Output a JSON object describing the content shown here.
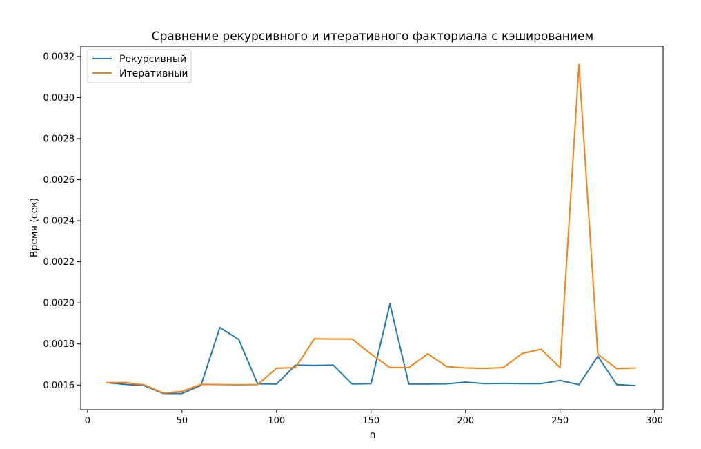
{
  "chart_data": {
    "type": "line",
    "title": "Сравнение рекурсивного и итеративного факториала с кэшированием",
    "xlabel": "n",
    "ylabel": "Время (сек)",
    "xlim": [
      -3.6,
      304.5
    ],
    "ylim": [
      0.00148,
      0.00325
    ],
    "xticks": [
      0,
      50,
      100,
      150,
      200,
      250,
      300
    ],
    "yticks": [
      0.0016,
      0.0018,
      0.002,
      0.0022,
      0.0024,
      0.0026,
      0.0028,
      0.003,
      0.0032
    ],
    "legend_position": "upper-left",
    "grid": false,
    "x": [
      10,
      20,
      30,
      40,
      50,
      60,
      70,
      80,
      90,
      100,
      110,
      120,
      130,
      140,
      150,
      160,
      170,
      180,
      190,
      200,
      210,
      220,
      230,
      240,
      250,
      260,
      270,
      280,
      290
    ],
    "series": [
      {
        "name": "Рекурсивный",
        "color": "#1f77b4",
        "values": [
          0.001612,
          0.001603,
          0.001597,
          0.001559,
          0.001559,
          0.001598,
          0.00188,
          0.001822,
          0.001606,
          0.001605,
          0.001697,
          0.001696,
          0.001697,
          0.001605,
          0.001607,
          0.001995,
          0.001605,
          0.001605,
          0.001606,
          0.001614,
          0.001607,
          0.001608,
          0.001607,
          0.001607,
          0.001622,
          0.001602,
          0.00174,
          0.001602,
          0.001597
        ]
      },
      {
        "name": "Итеративный",
        "color": "#ff7f0e",
        "values": [
          0.001612,
          0.001612,
          0.001601,
          0.001561,
          0.001569,
          0.001603,
          0.001602,
          0.001601,
          0.001602,
          0.001682,
          0.001685,
          0.001825,
          0.001824,
          0.001824,
          0.001751,
          0.001685,
          0.001685,
          0.001752,
          0.00169,
          0.001683,
          0.001681,
          0.001685,
          0.001754,
          0.001774,
          0.001685,
          0.00316,
          0.00175,
          0.00168,
          0.001683
        ]
      }
    ]
  }
}
